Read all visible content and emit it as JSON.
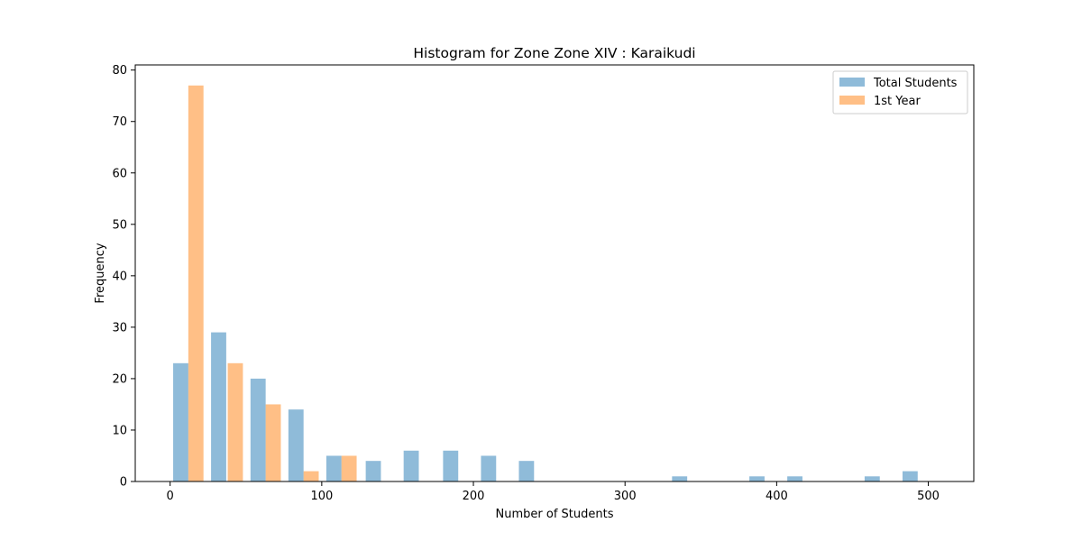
{
  "chart_data": {
    "type": "bar",
    "title": "Histogram for Zone Zone XIV : Karaikudi",
    "xlabel": "Number of Students",
    "ylabel": "Frequency",
    "xlim": [
      -23,
      530
    ],
    "ylim": [
      0,
      81
    ],
    "xticks": [
      0,
      100,
      200,
      300,
      400,
      500
    ],
    "yticks": [
      0,
      10,
      20,
      30,
      40,
      50,
      60,
      70,
      80
    ],
    "grid": false,
    "legend": {
      "placement": "top-right"
    },
    "bar_width": 10.0,
    "series": [
      {
        "name": "Total Students",
        "color": "#1f77b4",
        "opacity": 0.5,
        "x": [
          7,
          32,
          58,
          83,
          108,
          134,
          159,
          185,
          210,
          235,
          336,
          387,
          412,
          463,
          488
        ],
        "values": [
          23,
          29,
          20,
          14,
          5,
          4,
          6,
          6,
          5,
          4,
          1,
          1,
          1,
          1,
          2
        ]
      },
      {
        "name": "1st Year",
        "color": "#ff7f0e",
        "opacity": 0.5,
        "x": [
          17,
          43,
          68,
          93,
          118
        ],
        "values": [
          77,
          23,
          15,
          2,
          5
        ]
      }
    ]
  }
}
